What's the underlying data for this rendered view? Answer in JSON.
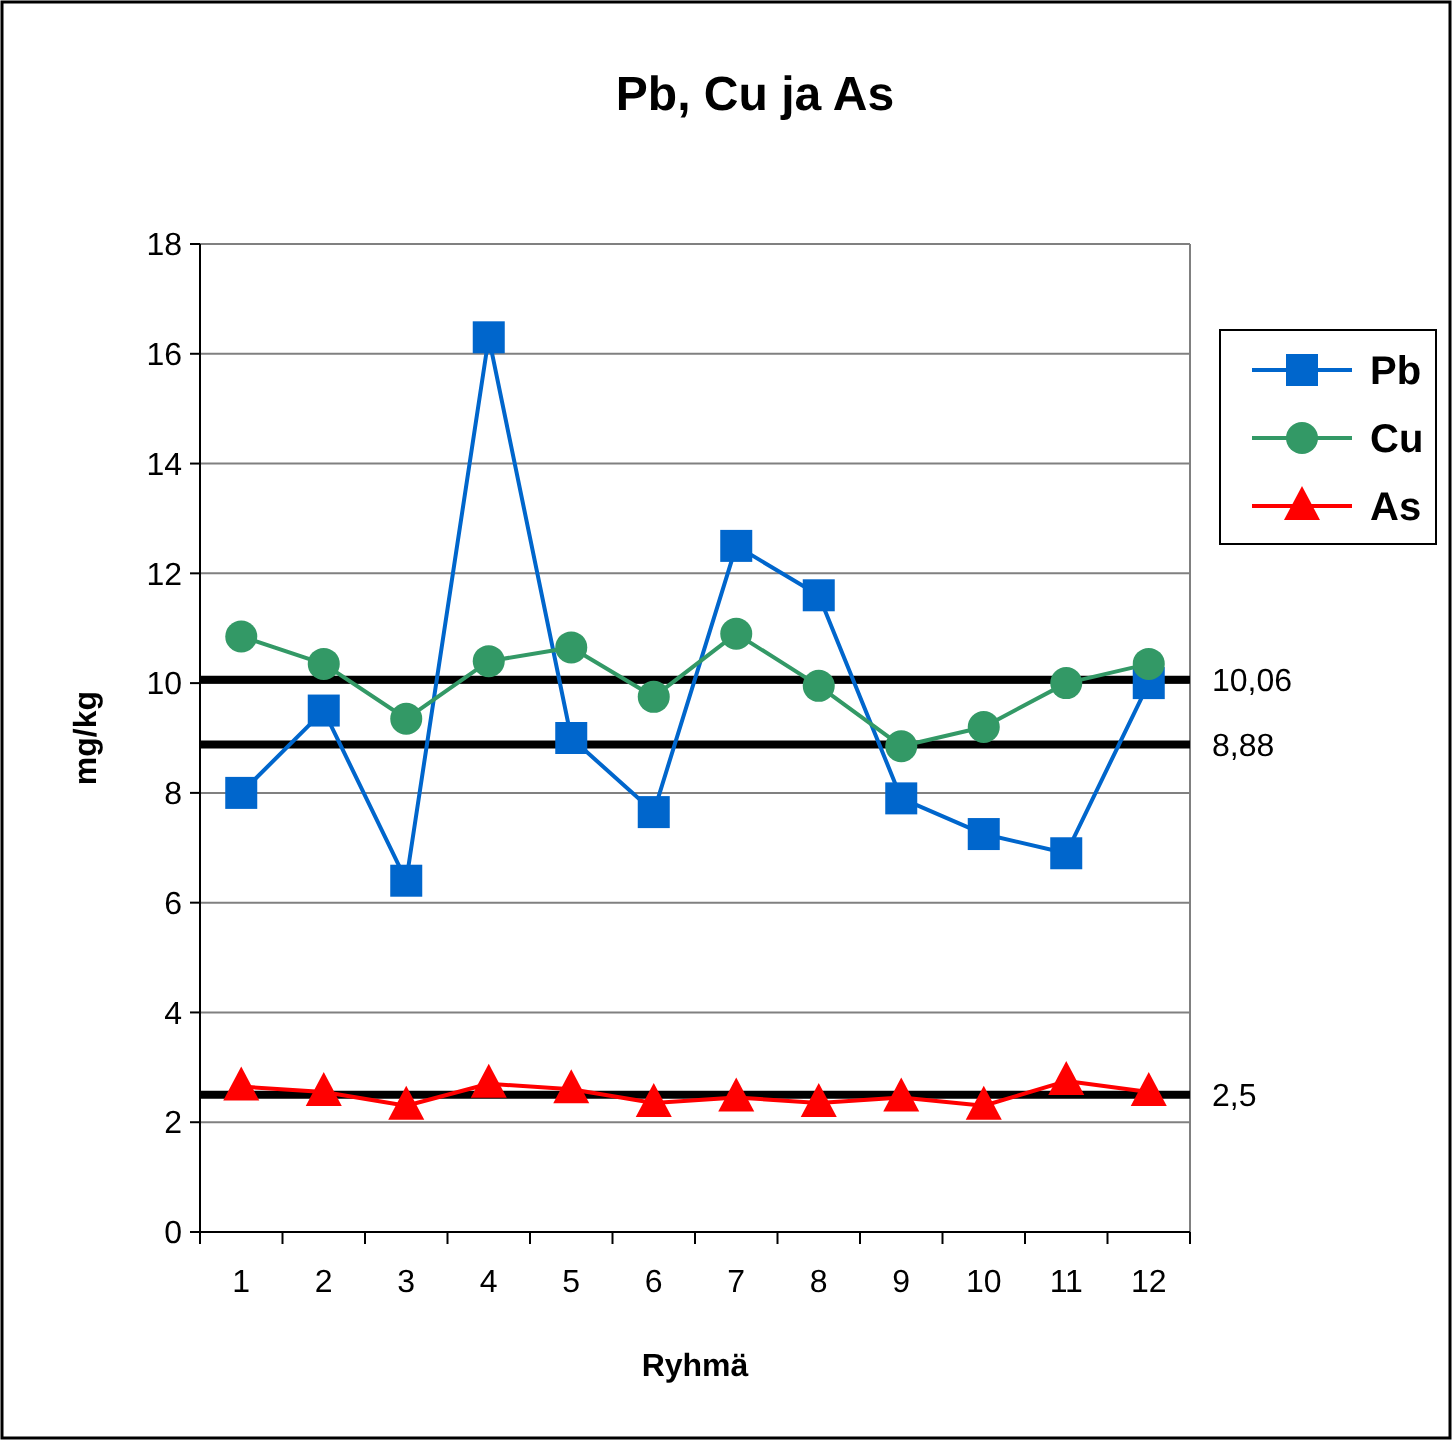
{
  "chart_data": {
    "type": "line",
    "title": "Pb, Cu ja As",
    "xlabel": "Ryhmä",
    "ylabel": "mg/kg",
    "categories": [
      "1",
      "2",
      "3",
      "4",
      "5",
      "6",
      "7",
      "8",
      "9",
      "10",
      "11",
      "12"
    ],
    "series": [
      {
        "name": "Pb",
        "color": "#0066cc",
        "marker": "square",
        "values": [
          8.0,
          9.5,
          6.4,
          16.3,
          9.0,
          7.65,
          12.5,
          11.6,
          7.9,
          7.25,
          6.9,
          10.0
        ]
      },
      {
        "name": "Cu",
        "color": "#339966",
        "marker": "circle",
        "values": [
          10.85,
          10.35,
          9.35,
          10.4,
          10.65,
          9.75,
          10.9,
          9.95,
          8.85,
          9.2,
          10.0,
          10.35
        ]
      },
      {
        "name": "As",
        "color": "#ff0000",
        "marker": "triangle",
        "values": [
          2.65,
          2.55,
          2.3,
          2.7,
          2.6,
          2.35,
          2.45,
          2.35,
          2.45,
          2.3,
          2.75,
          2.55
        ]
      }
    ],
    "ylim": [
      0,
      18
    ],
    "yticks": [
      0,
      2,
      4,
      6,
      8,
      10,
      12,
      14,
      16,
      18
    ],
    "grid": "y",
    "legend": "right",
    "ref_lines": [
      {
        "axis": "y",
        "value": 10.06,
        "label": "10,06",
        "color": "#000000"
      },
      {
        "axis": "y",
        "value": 8.88,
        "label": "8,88",
        "color": "#000000"
      },
      {
        "axis": "y",
        "value": 2.5,
        "label": "2,5",
        "color": "#000000"
      }
    ]
  }
}
